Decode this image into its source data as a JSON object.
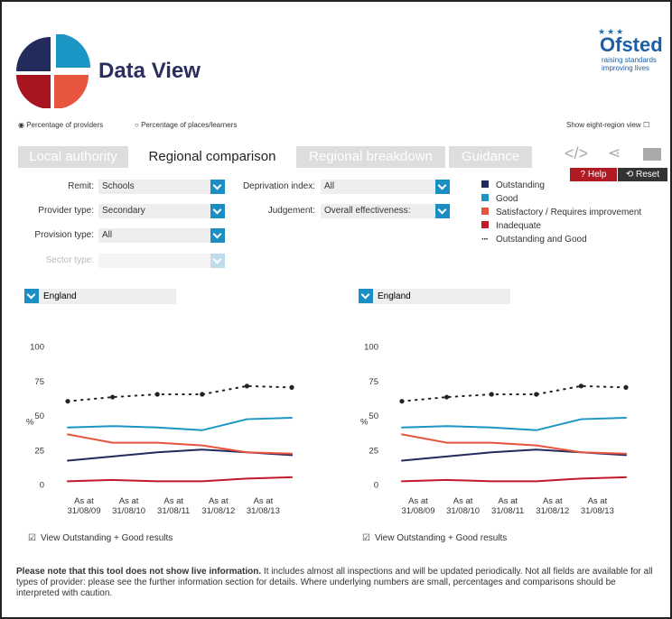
{
  "header": {
    "title": "Data View",
    "logo": {
      "name": "Ofsted",
      "tagline": [
        "raising standards",
        "improving lives"
      ]
    }
  },
  "options": {
    "measures": [
      "Percentage of providers",
      "Percentage of places/learners"
    ],
    "eight_region": "Show eight-region view"
  },
  "tabs": [
    "Local authority",
    "Regional comparison",
    "Regional breakdown",
    "Guidance"
  ],
  "buttons": {
    "help": "? Help",
    "reset": "Reset"
  },
  "filters": [
    {
      "label": "Remit:",
      "value": "Schools"
    },
    {
      "label": "Provider type:",
      "value": "Secondary"
    },
    {
      "label": "Provision type:",
      "value": "All"
    },
    {
      "label": "Sector type:"
    },
    {
      "label": "Deprivation index:",
      "value": "All"
    },
    {
      "label": "Judgement:",
      "value": "Overall effectiveness:"
    }
  ],
  "chart_data": [
    {
      "type": "line",
      "selector": "England",
      "y_label": "%",
      "categories": [
        "As at 31/08/09",
        "As at 31/08/10",
        "As at 31/08/11",
        "As at 31/08/12",
        "As at 31/08/13",
        null
      ],
      "ylim": [
        0,
        100
      ],
      "yticks": [
        0,
        25,
        50,
        75,
        100
      ],
      "grid": false,
      "series": [
        {
          "name": "Outstanding",
          "color": "#232a5c",
          "values": [
            18,
            21,
            24,
            26,
            24,
            22
          ]
        },
        {
          "name": "Good",
          "color": "#1b96c4",
          "values": [
            42,
            43,
            42,
            40,
            48,
            49
          ]
        },
        {
          "name": "Satisfactory / Requires improvement",
          "color": "#e8553e",
          "values": [
            37,
            31,
            31,
            29,
            24,
            23
          ]
        },
        {
          "name": "Inadequate",
          "color": "#c21a2c",
          "values": [
            3,
            4,
            3,
            3,
            5,
            6
          ]
        },
        {
          "name": "Outstanding and Good",
          "color": "#222222",
          "line_style": "dotted",
          "values": [
            61,
            64,
            66,
            66,
            72,
            71
          ]
        }
      ],
      "checkbox": "View Outstanding + Good results"
    },
    {
      "type": "line",
      "selector": "England",
      "y_label": "%",
      "categories": [
        "As at 31/08/09",
        "As at 31/08/10",
        "As at 31/08/11",
        "As at 31/08/12",
        "As at 31/08/13",
        null
      ],
      "ylim": [
        0,
        100
      ],
      "yticks": [
        0,
        25,
        50,
        75,
        100
      ],
      "grid": false,
      "series": [
        {
          "color": "#232a5c",
          "values": [
            18,
            21,
            24,
            26,
            24,
            22
          ]
        },
        {
          "color": "#1b96c4",
          "values": [
            42,
            43,
            42,
            40,
            48,
            49
          ]
        },
        {
          "color": "#e8553e",
          "values": [
            37,
            31,
            31,
            29,
            24,
            23
          ]
        },
        {
          "color": "#c21a2c",
          "values": [
            3,
            4,
            3,
            3,
            5,
            6
          ]
        },
        {
          "color": "#222222",
          "line_style": "dotted",
          "values": [
            61,
            64,
            66,
            66,
            72,
            71
          ]
        }
      ],
      "checkbox": "View Outstanding + Good results"
    }
  ],
  "footer": {
    "bold": "Please note that this tool does not show live information.",
    "text": "It includes almost all inspections and will be updated periodically. Not all fields are available for all types of provider: please see the further information section for details. Where underlying numbers are small, percentages and comparisons should be interpreted with caution."
  }
}
